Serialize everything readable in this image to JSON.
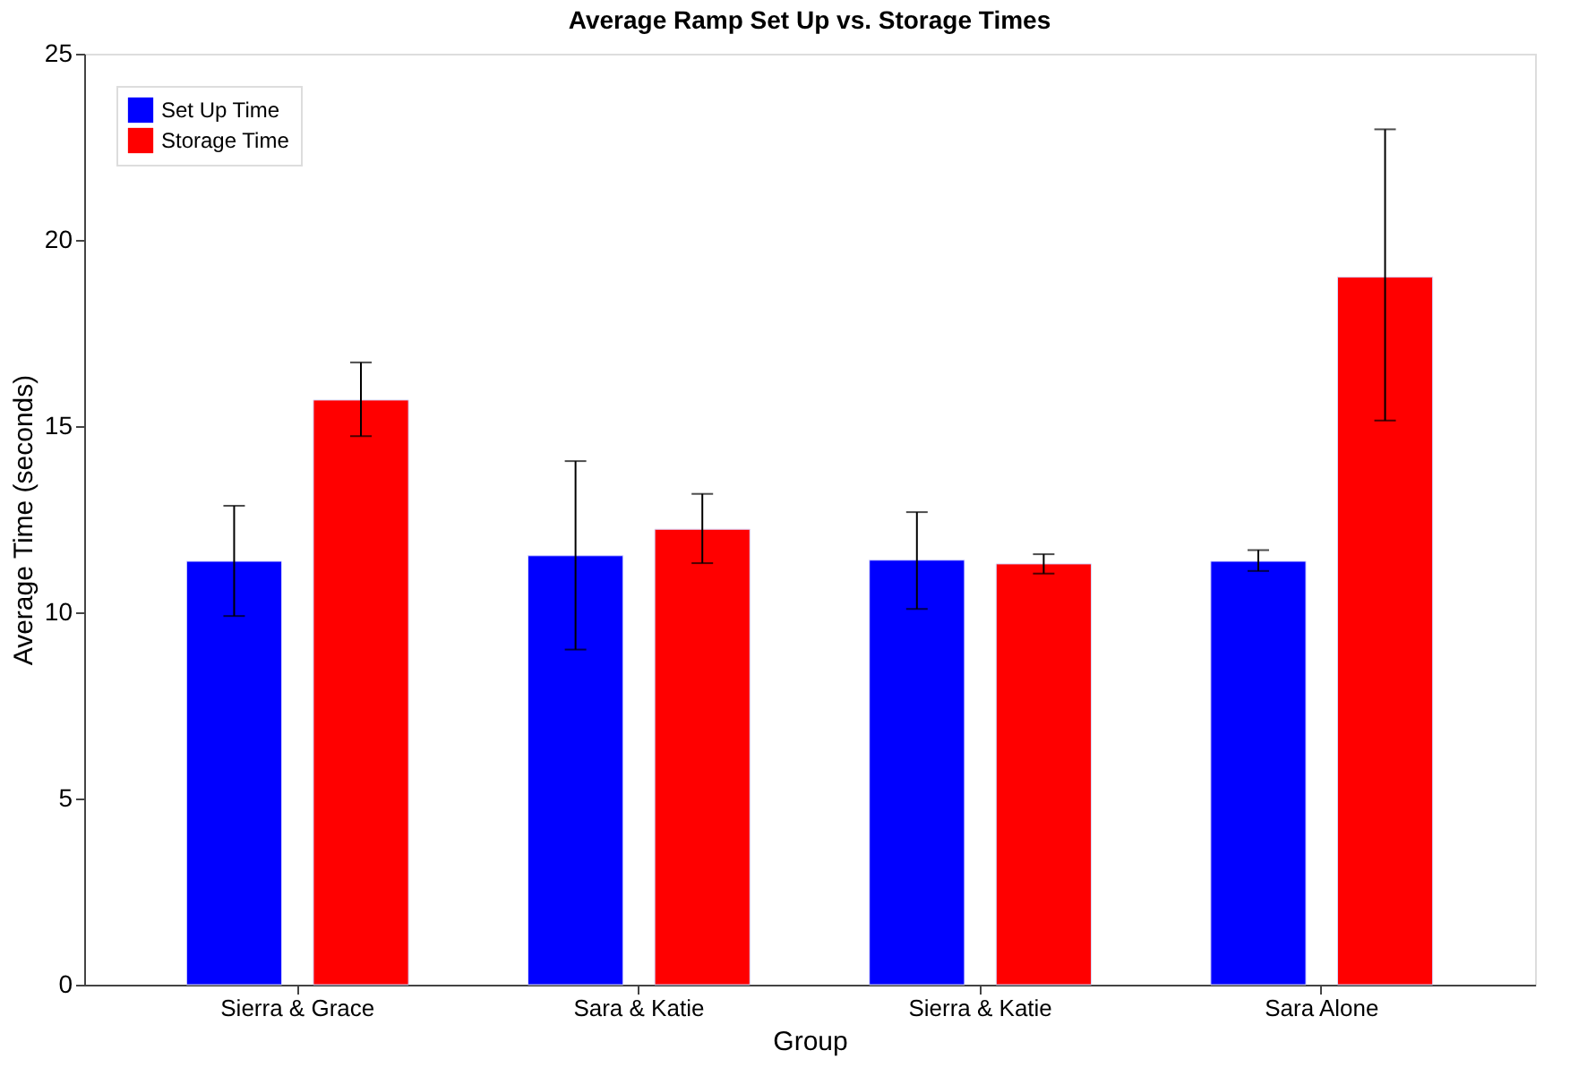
{
  "chart_data": {
    "type": "bar",
    "title": "Average Ramp Set Up vs. Storage Times",
    "xlabel": "Group",
    "ylabel": "Average Time (seconds)",
    "categories": [
      "Sierra & Grace",
      "Sara & Katie",
      "Sierra & Katie",
      "Sara Alone"
    ],
    "series": [
      {
        "name": "Set Up Time",
        "color": "#0000ff",
        "values": [
          11.37,
          11.52,
          11.4,
          11.37
        ],
        "errors": [
          [
            9.9,
            12.86
          ],
          [
            9.0,
            14.06
          ],
          [
            10.09,
            12.69
          ],
          [
            11.11,
            11.67
          ]
        ]
      },
      {
        "name": "Storage Time",
        "color": "#ff0000",
        "values": [
          15.7,
          12.23,
          11.3,
          19.0
        ],
        "errors": [
          [
            14.73,
            16.71
          ],
          [
            11.32,
            13.18
          ],
          [
            11.04,
            11.56
          ],
          [
            15.15,
            22.97
          ]
        ]
      }
    ],
    "ylim": [
      0,
      25
    ],
    "yticks": [
      0,
      5,
      10,
      15,
      20,
      25
    ],
    "grid": false,
    "legend": "top left"
  }
}
